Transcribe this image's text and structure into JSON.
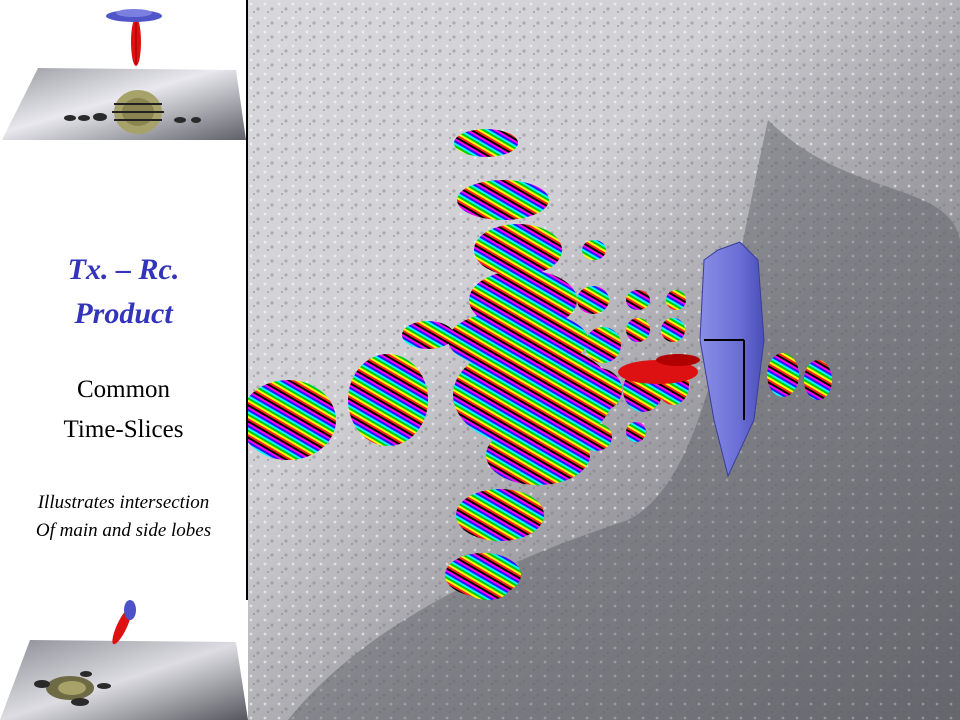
{
  "title": {
    "line1": "Tx. – Rc.",
    "line2": "Product",
    "color": "#3333bb"
  },
  "subtitle": {
    "line1": "Common",
    "line2": "Time-Slices"
  },
  "caption": {
    "line1": "Illustrates intersection",
    "line2": "Of main and side lobes"
  },
  "colors": {
    "ship": "#6b6fd6",
    "beam": "#dd1111",
    "seafloor": "#c8c8cc"
  },
  "icons": {
    "top_thumbnail": "seafloor-thumbnail-icon",
    "bottom_thumbnail": "seafloor-thumbnail-icon",
    "main_view": "sonar-footprint-visualization"
  }
}
